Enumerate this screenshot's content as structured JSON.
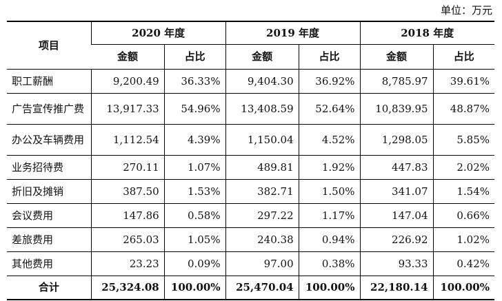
{
  "unit_label": "单位：万元",
  "header": {
    "item": "项目",
    "years": [
      "2020 年度",
      "2019 年度",
      "2018 年度"
    ],
    "amount": "金额",
    "ratio": "占比"
  },
  "rows": [
    {
      "label": "职工薪酬",
      "v": [
        "9,200.49",
        "36.33%",
        "9,404.30",
        "36.92%",
        "8,785.97",
        "39.61%"
      ]
    },
    {
      "label": "广告宣传推广费",
      "v": [
        "13,917.33",
        "54.96%",
        "13,408.59",
        "52.64%",
        "10,839.95",
        "48.87%"
      ]
    },
    {
      "label": "办公及车辆费用",
      "v": [
        "1,112.54",
        "4.39%",
        "1,150.04",
        "4.52%",
        "1,298.05",
        "5.85%"
      ]
    },
    {
      "label": "业务招待费",
      "v": [
        "270.11",
        "1.07%",
        "489.81",
        "1.92%",
        "447.83",
        "2.02%"
      ]
    },
    {
      "label": "折旧及摊销",
      "v": [
        "387.50",
        "1.53%",
        "382.71",
        "1.50%",
        "341.07",
        "1.54%"
      ]
    },
    {
      "label": "会议费用",
      "v": [
        "147.86",
        "0.58%",
        "297.22",
        "1.17%",
        "147.04",
        "0.66%"
      ]
    },
    {
      "label": "差旅费用",
      "v": [
        "265.03",
        "1.05%",
        "240.38",
        "0.94%",
        "226.92",
        "1.02%"
      ]
    },
    {
      "label": "其他费用",
      "v": [
        "23.23",
        "0.09%",
        "97.00",
        "0.38%",
        "93.33",
        "0.42%"
      ]
    }
  ],
  "total": {
    "label": "合计",
    "v": [
      "25,324.08",
      "100.00%",
      "25,470.04",
      "100.00%",
      "22,180.14",
      "100.00%"
    ]
  }
}
